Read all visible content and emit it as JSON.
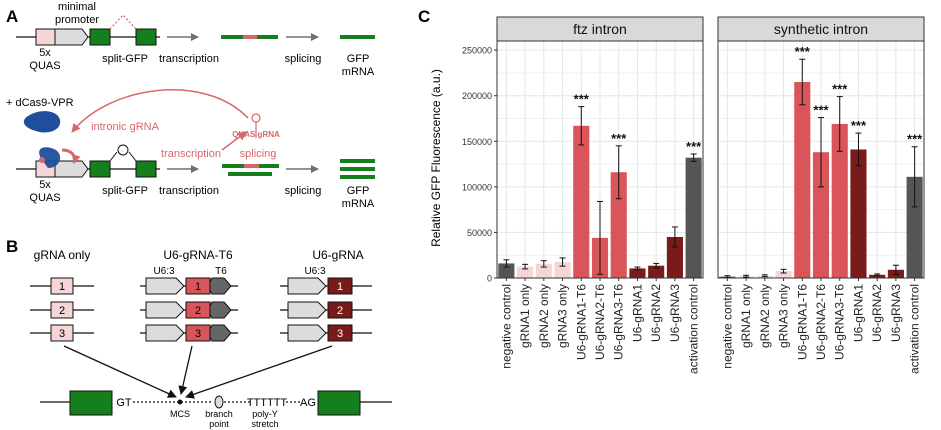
{
  "panels": {
    "A": {
      "letter": "A",
      "top": {
        "promoter_label_1": "minimal",
        "promoter_label_2": "promoter",
        "quas_1": "5x",
        "quas_2": "QUAS",
        "gene_label": "split-GFP",
        "transcription": "transcription",
        "splicing": "splicing",
        "mrna_1": "GFP",
        "mrna_2": "mRNA"
      },
      "bottom": {
        "activator": "+ dCas9-VPR",
        "intronic_grna": "intronic gRNA",
        "transcription_red": "transcription",
        "quas_grna": "QUAS gRNA",
        "splicing_red": "splicing",
        "quas_1": "5x",
        "quas_2": "QUAS",
        "gene_label": "split-GFP",
        "transcription": "transcription",
        "splicing": "splicing",
        "mrna_1": "GFP",
        "mrna_2": "mRNA"
      }
    },
    "B": {
      "letter": "B",
      "group_titles": [
        "gRNA only",
        "U6-gRNA-T6",
        "U6-gRNA"
      ],
      "u6_label": "U6:3",
      "t6_label": "T6",
      "numbers": [
        "1",
        "2",
        "3"
      ],
      "intron": {
        "gt": "GT",
        "ag": "AG",
        "mcs": "MCS",
        "branch_1": "branch",
        "branch_2": "point",
        "polyy_seq": "TTTTTT",
        "polyy_1": "poly-Y",
        "polyy_2": "stretch"
      }
    },
    "C": {
      "letter": "C"
    }
  },
  "colors": {
    "quas": "#f6d5d6",
    "gfp": "#157f1d",
    "promoter": "#dcdcdc",
    "accent_red": "#d9666b",
    "dcas9": "#1f4e9c",
    "dark_red": "#7a1b1b",
    "mid_red": "#d9555a",
    "light_pink": "#f6d5d6",
    "gray_dark": "#555555",
    "strip": "#d9d9d9",
    "plot_bg": "#ffffff",
    "grid": "#e6e6e6"
  },
  "chart_data": {
    "type": "bar",
    "ylabel": "Relative GFP Fluorescence (a.u.)",
    "xlabel": "",
    "ylim": [
      0,
      260000
    ],
    "yticks": [
      0,
      50000,
      100000,
      150000,
      200000,
      250000
    ],
    "ytick_labels": [
      "0",
      "50000",
      "100000",
      "150000",
      "200000",
      "250000"
    ],
    "categories": [
      "negative control",
      "gRNA1 only",
      "gRNA2 only",
      "gRNA3 only",
      "U6-gRNA1-T6",
      "U6-gRNA2-T6",
      "U6-gRNA3-T6",
      "U6-gRNA1",
      "U6-gRNA2",
      "U6-gRNA3",
      "activation control"
    ],
    "bar_colors": [
      "#555555",
      "#f6d5d6",
      "#f6d5d6",
      "#f6d5d6",
      "#d9555a",
      "#d9555a",
      "#d9555a",
      "#7a1b1b",
      "#7a1b1b",
      "#7a1b1b",
      "#555555"
    ],
    "facets": [
      {
        "title": "ftz intron",
        "values": [
          16000,
          12500,
          15500,
          17500,
          167000,
          44000,
          116000,
          10500,
          13500,
          45000,
          132000
        ],
        "errors": [
          4000,
          2500,
          3500,
          4500,
          21000,
          40000,
          29000,
          1500,
          2500,
          11000,
          4000
        ],
        "significance": [
          "",
          "",
          "",
          "",
          "***",
          "",
          "***",
          "",
          "",
          "",
          "***"
        ]
      },
      {
        "title": "synthetic intron",
        "values": [
          1500,
          2000,
          2500,
          7500,
          215000,
          138000,
          169000,
          141000,
          3500,
          9000,
          111000
        ],
        "errors": [
          1000,
          1000,
          1000,
          2000,
          25000,
          38000,
          30000,
          18000,
          1000,
          5000,
          33000
        ],
        "significance": [
          "",
          "",
          "",
          "",
          "***",
          "***",
          "***",
          "***",
          "",
          "",
          "***"
        ]
      }
    ]
  }
}
